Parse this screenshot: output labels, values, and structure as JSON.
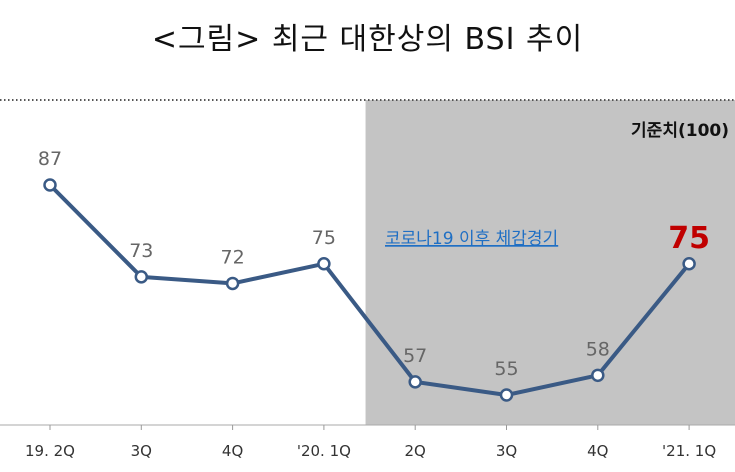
{
  "title": "<그림> 최근 대한상의 BSI 추이",
  "chart_data": {
    "type": "line",
    "title": "<그림> 최근 대한상의 BSI 추이",
    "categories": [
      "19. 2Q",
      "3Q",
      "4Q",
      "'20. 1Q",
      "2Q",
      "3Q",
      "4Q",
      "'21. 1Q"
    ],
    "series": [
      {
        "values": [
          87,
          73,
          72,
          75,
          57,
          55,
          58,
          75
        ]
      }
    ],
    "baseline": {
      "label": "기준치(100)",
      "value": 100
    },
    "shaded_region": {
      "from": "'20. 1Q",
      "to": "'21. 1Q",
      "label": "코로나19 이후 체감경기"
    },
    "highlight_label": "75",
    "colors": {
      "line": "#3a5a85",
      "shade": "#c4c4c4",
      "highlight": "#c00000",
      "annotation": "#1f6fc4"
    }
  }
}
